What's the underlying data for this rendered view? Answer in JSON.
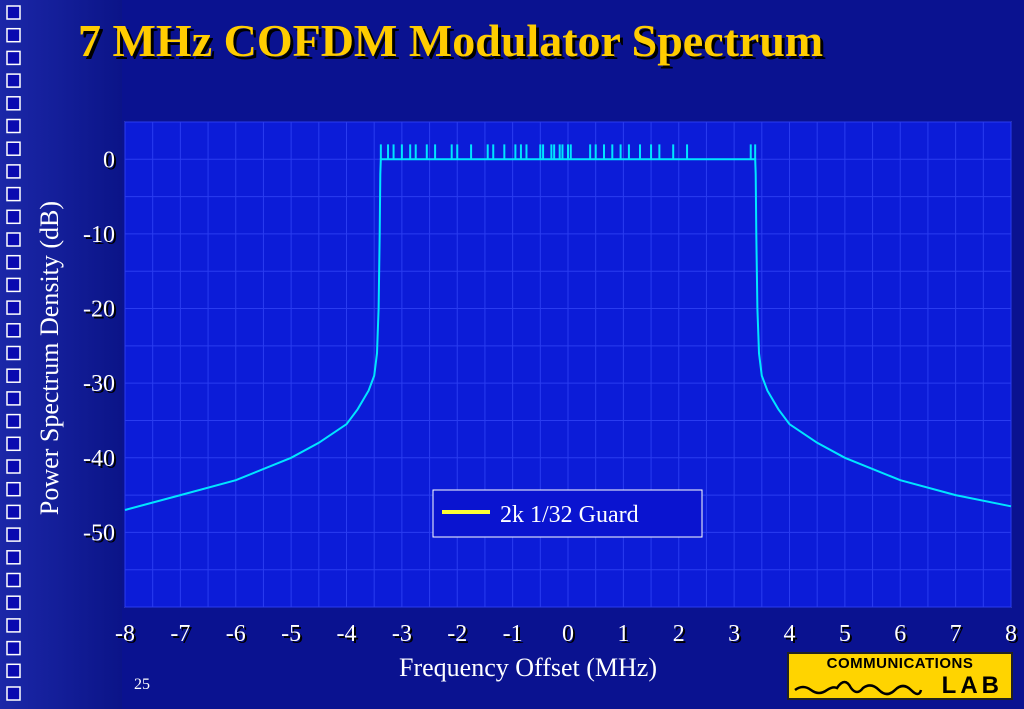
{
  "slide": {
    "title": "7 MHz COFDM Modulator Spectrum",
    "page_number": "25"
  },
  "logo": {
    "line1": "COMMUNICATIONS",
    "line2": "LAB"
  },
  "colors": {
    "background": "#0a1290",
    "plot_area": "#0c1cd8",
    "title": "#ffcc00",
    "trace": "#00e5ff",
    "legend_swatch": "#ffff33",
    "grid": "#2a3cf0"
  },
  "chart_data": {
    "type": "line",
    "xlabel": "Frequency Offset (MHz)",
    "ylabel": "Power Spectrum Density (dB)",
    "xlim": [
      -8,
      8
    ],
    "ylim": [
      -60,
      5
    ],
    "x_ticks": [
      "-8",
      "-7",
      "-6",
      "-5",
      "-4",
      "-3",
      "-2",
      "-1",
      "0",
      "1",
      "2",
      "3",
      "4",
      "5",
      "6",
      "7",
      "8"
    ],
    "y_ticks": [
      "0",
      "-10",
      "-20",
      "-30",
      "-40",
      "-50"
    ],
    "grid": true,
    "legend_position": "bottom-center",
    "series": [
      {
        "name": "2k 1/32 Guard",
        "color": "#00e5ff",
        "x": [
          -8.0,
          -7.0,
          -6.0,
          -5.0,
          -4.5,
          -4.0,
          -3.8,
          -3.6,
          -3.5,
          -3.45,
          -3.42,
          -3.4,
          -3.39,
          -3.38,
          -3.36,
          3.36,
          3.38,
          3.39,
          3.4,
          3.42,
          3.45,
          3.5,
          3.6,
          3.8,
          4.0,
          4.5,
          5.0,
          6.0,
          7.0,
          8.0
        ],
        "y": [
          -47,
          -45,
          -43,
          -40,
          -38,
          -35.5,
          -33.5,
          -31,
          -29,
          -26,
          -20,
          -10,
          -2,
          0,
          0,
          0,
          0,
          -2,
          -10,
          -20,
          -26,
          -29,
          -31,
          -33.5,
          -35.5,
          -38,
          -40,
          -43,
          -45,
          -46.5
        ]
      }
    ],
    "spikes": {
      "note": "",
      "x": [
        -3.38,
        -3.25,
        -3.15,
        -3.0,
        -2.85,
        -2.75,
        -2.55,
        -2.4,
        -2.1,
        -2.0,
        -1.75,
        -1.45,
        -1.35,
        -1.15,
        -0.95,
        -0.85,
        -0.75,
        -0.5,
        -0.45,
        -0.3,
        -0.25,
        -0.15,
        -0.1,
        0.0,
        0.05,
        0.4,
        0.5,
        0.65,
        0.8,
        0.95,
        1.1,
        1.3,
        1.5,
        1.65,
        1.9,
        2.15,
        3.3,
        3.38
      ],
      "peak_db": 2
    }
  }
}
